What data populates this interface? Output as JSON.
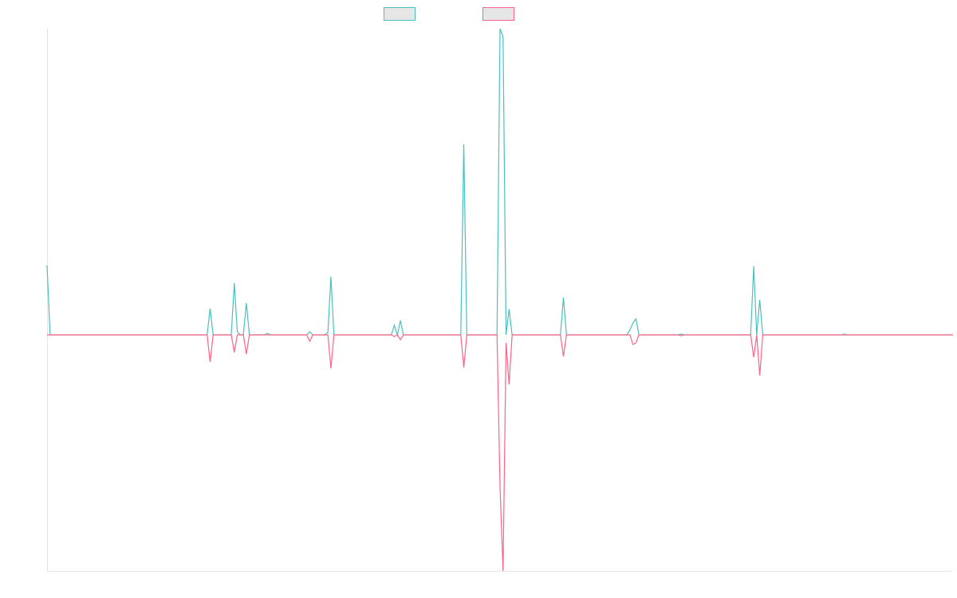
{
  "chart_data": {
    "type": "line",
    "x": [
      0,
      1,
      53,
      54,
      55,
      60,
      61,
      62,
      63,
      64,
      65,
      66,
      67,
      72,
      73,
      74,
      86,
      87,
      88,
      92,
      93,
      94,
      95,
      114,
      115,
      116,
      117,
      118,
      137,
      138,
      139,
      149,
      150,
      151,
      152,
      153,
      154,
      170,
      171,
      172,
      191,
      192,
      193,
      194,
      195,
      196,
      209,
      210,
      211,
      233,
      234,
      235,
      236,
      237,
      263,
      264,
      265,
      300
    ],
    "series": [
      {
        "color": "#4bc0c0",
        "values": [
          87,
          0,
          0,
          33,
          0,
          0,
          0,
          65,
          4,
          0,
          0,
          40,
          0,
          0,
          2,
          0,
          0,
          4,
          0,
          0,
          3,
          73,
          0,
          0,
          12,
          0,
          18,
          0,
          0,
          239,
          0,
          0,
          384,
          374,
          0,
          32,
          0,
          0,
          47,
          0,
          0,
          0,
          6,
          15,
          20,
          0,
          0,
          1,
          0,
          0,
          86,
          0,
          44,
          0,
          0,
          1,
          0,
          0
        ]
      },
      {
        "color": "#ff6384",
        "values": [
          0,
          0,
          0,
          -34,
          0,
          0,
          0,
          -22,
          0,
          0,
          0,
          -24,
          0,
          0,
          0,
          0,
          0,
          -8,
          0,
          0,
          0,
          -42,
          0,
          0,
          -2,
          0,
          -6,
          0,
          0,
          -41,
          0,
          0,
          -190,
          -296,
          -10,
          -62,
          0,
          0,
          -27,
          0,
          0,
          0,
          0,
          -12,
          -10,
          0,
          0,
          -1,
          0,
          0,
          -28,
          0,
          -51,
          0,
          0,
          0,
          0,
          0
        ]
      }
    ],
    "xlim": [
      0,
      300
    ],
    "ylim": [
      -296,
      384
    ],
    "grid": false
  }
}
